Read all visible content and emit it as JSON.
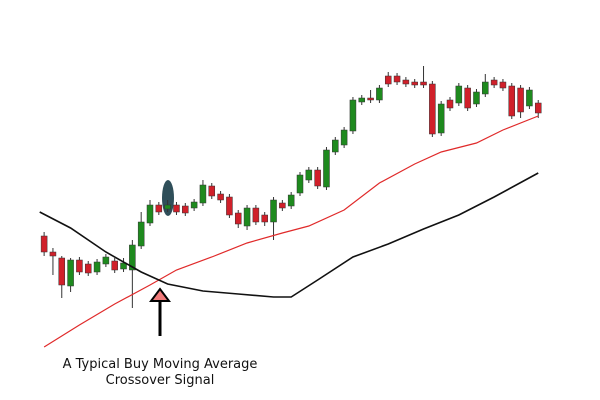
{
  "chart_data": {
    "type": "candlestick",
    "annotation": [
      "A Typical Buy Moving Average",
      "Crossover Signal"
    ],
    "xlim": [
      -4,
      64
    ],
    "ylim": [
      0,
      400
    ],
    "up_color": "#1e8a1e",
    "down_color": "#d0202a",
    "candles": {
      "x": [
        1,
        2,
        3,
        4,
        5,
        6,
        7,
        8,
        9,
        10,
        11,
        12,
        13,
        14,
        15,
        16,
        17,
        18,
        19,
        20,
        21,
        22,
        23,
        24,
        25,
        26,
        27,
        28,
        29,
        30,
        31,
        32,
        33,
        34,
        35,
        36,
        37,
        38,
        39,
        40,
        41,
        42,
        43,
        44,
        45,
        46,
        47,
        48,
        49,
        50,
        51,
        52,
        53,
        54,
        55,
        56,
        57
      ],
      "open": [
        164,
        148,
        142,
        114,
        140,
        136,
        128,
        136,
        139,
        131,
        130,
        154,
        177,
        195,
        191,
        195,
        194,
        192,
        197,
        214,
        206,
        203,
        187,
        174,
        192,
        185,
        178,
        197,
        194,
        207,
        220,
        230,
        213,
        248,
        255,
        269,
        298,
        302,
        300,
        324,
        324,
        320,
        318,
        318,
        316,
        267,
        300,
        297,
        312,
        296,
        306,
        320,
        318,
        314,
        312,
        294,
        297
      ],
      "high": [
        168,
        152,
        144,
        142,
        143,
        139,
        141,
        146,
        142,
        142,
        160,
        188,
        200,
        198,
        200,
        198,
        197,
        201,
        220,
        217,
        209,
        206,
        190,
        195,
        195,
        188,
        203,
        200,
        208,
        228,
        233,
        233,
        253,
        263,
        273,
        303,
        305,
        310,
        315,
        328,
        327,
        323,
        321,
        334,
        319,
        299,
        303,
        317,
        315,
        311,
        326,
        323,
        321,
        317,
        315,
        313,
        300
      ],
      "low": [
        144,
        125,
        102,
        108,
        125,
        124,
        125,
        133,
        127,
        128,
        92,
        151,
        174,
        185,
        188,
        185,
        184,
        189,
        194,
        201,
        197,
        182,
        172,
        170,
        175,
        174,
        160,
        189,
        191,
        204,
        217,
        211,
        210,
        245,
        252,
        266,
        295,
        297,
        297,
        313,
        315,
        313,
        312,
        312,
        263,
        264,
        289,
        294,
        289,
        293,
        303,
        312,
        309,
        281,
        282,
        291,
        282
      ],
      "close": [
        148,
        144,
        115,
        140,
        128,
        127,
        138,
        143,
        130,
        137,
        155,
        178,
        195,
        188,
        195,
        188,
        187,
        198,
        215,
        204,
        200,
        185,
        176,
        192,
        178,
        178,
        200,
        192,
        205,
        225,
        230,
        214,
        250,
        260,
        270,
        300,
        302,
        300,
        312,
        316,
        318,
        316,
        315,
        315,
        266,
        296,
        292,
        314,
        292,
        308,
        318,
        315,
        312,
        284,
        288,
        310,
        287
      ]
    },
    "series": [
      {
        "color": "#e02a2a",
        "x": [
          1,
          5,
          9,
          13,
          16,
          20,
          24,
          28,
          31,
          35,
          39,
          43,
          46,
          50,
          53,
          57
        ],
        "values": [
          53,
          75,
          96,
          115,
          130,
          143,
          157,
          167,
          174,
          190,
          217,
          236,
          248,
          257,
          270,
          284
        ]
      },
      {
        "color": "#111111",
        "x": [
          0.5,
          4,
          8,
          12,
          15,
          19,
          23,
          27,
          29,
          32,
          36,
          40,
          44,
          48,
          52,
          57
        ],
        "values": [
          188,
          172,
          148,
          128,
          116,
          109,
          106,
          103,
          103,
          120,
          143,
          156,
          171,
          185,
          203,
          227
        ]
      }
    ]
  }
}
